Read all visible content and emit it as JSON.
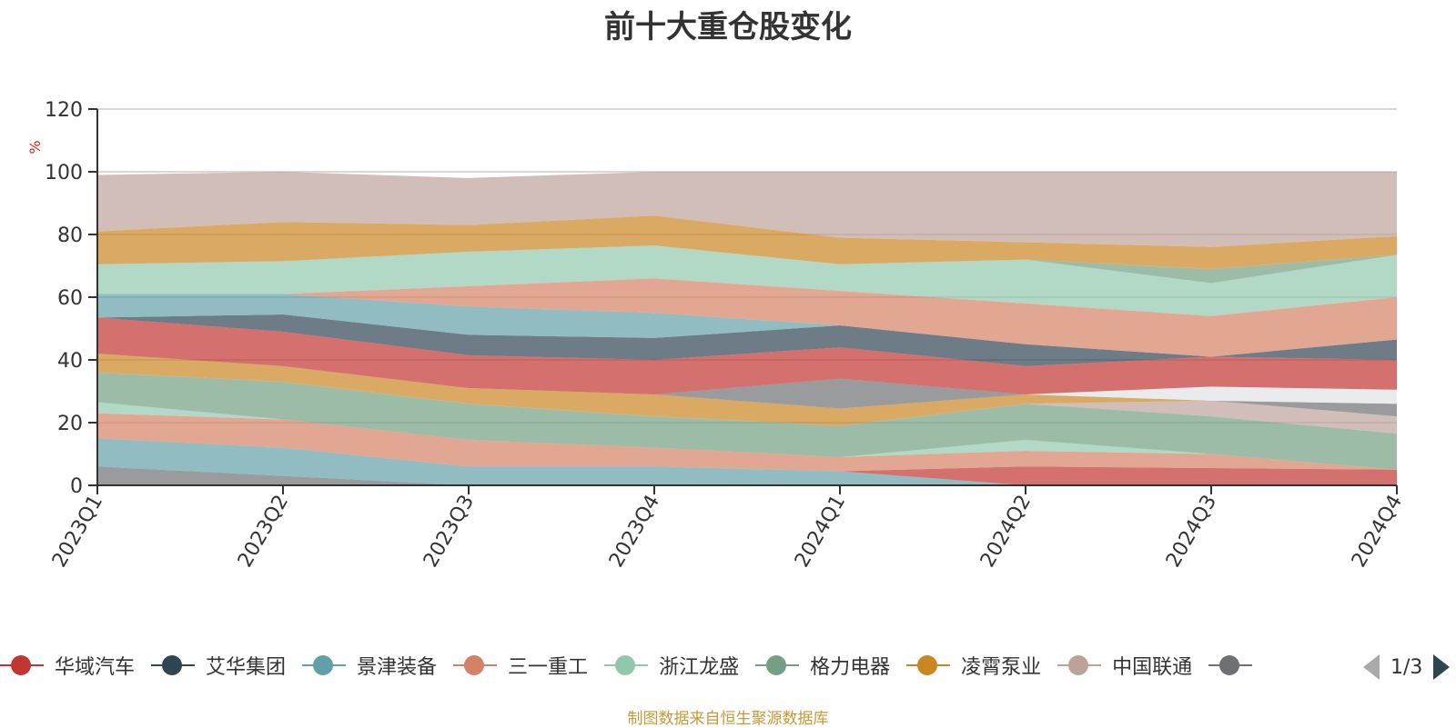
{
  "footer": "制图数据来自恒生聚源数据库",
  "pager": {
    "text": "1/3"
  },
  "chart_data": {
    "type": "area",
    "title": "前十大重仓股变化",
    "ylabel": "%",
    "ylim": [
      0,
      120
    ],
    "yticks": [
      0,
      20,
      40,
      60,
      80,
      100,
      120
    ],
    "grid": true,
    "legend_position": "bottom",
    "categories": [
      "2023Q1",
      "2023Q2",
      "2023Q3",
      "2023Q4",
      "2024Q1",
      "2024Q2",
      "2024Q3",
      "2024Q4"
    ],
    "legend": [
      {
        "name": "华域汽车",
        "color": "#c23531"
      },
      {
        "name": "艾华集团",
        "color": "#2f4554"
      },
      {
        "name": "景津装备",
        "color": "#61a0a8"
      },
      {
        "name": "三一重工",
        "color": "#d48265"
      },
      {
        "name": "浙江龙盛",
        "color": "#91c7ae"
      },
      {
        "name": "格力电器",
        "color": "#749f83"
      },
      {
        "name": "凌霄泵业",
        "color": "#ca8622"
      },
      {
        "name": "中国联通",
        "color": "#bda29a"
      },
      {
        "name": "",
        "color": "#6e7074"
      }
    ],
    "bands": [
      {
        "color": "#6e7074",
        "upper": [
          6,
          3,
          0,
          0,
          0,
          0,
          0,
          0
        ]
      },
      {
        "color": "#61a0a8",
        "upper": [
          15,
          12,
          6,
          6,
          4.5,
          0,
          0,
          0
        ]
      },
      {
        "color": "#c23531",
        "upper": [
          0,
          0,
          0,
          0,
          0,
          6,
          5.5,
          5
        ]
      },
      {
        "color": "#d48265",
        "upper": [
          23,
          21,
          14.5,
          12,
          9,
          11,
          10,
          5
        ]
      },
      {
        "color": "#91c7ae",
        "upper": [
          26.5,
          21,
          14.5,
          12,
          9,
          14.5,
          10,
          5
        ]
      },
      {
        "color": "#749f83",
        "upper": [
          36,
          33,
          26,
          22,
          19,
          26,
          22,
          16.5
        ]
      },
      {
        "color": "#bda29a",
        "upper": [
          36,
          33,
          26,
          22,
          19,
          26,
          27,
          22
        ]
      },
      {
        "color": "#ca8622",
        "upper": [
          42,
          38,
          31,
          29,
          24.5,
          29,
          27,
          22
        ]
      },
      {
        "color": "#6e7074",
        "upper": [
          42,
          38,
          31,
          29,
          34,
          29,
          27,
          26
        ]
      },
      {
        "color": "#dfe2e6",
        "upper": [
          42,
          38,
          31,
          29,
          34,
          29,
          31.5,
          30.5
        ]
      },
      {
        "color": "#c23531",
        "upper": [
          53.5,
          49,
          41.5,
          40,
          44,
          38,
          41,
          40
        ]
      },
      {
        "color": "#2f4554",
        "upper": [
          53.5,
          54.5,
          48,
          47,
          51,
          45,
          41,
          46.5
        ]
      },
      {
        "color": "#61a0a8",
        "upper": [
          61,
          61,
          57,
          55,
          51,
          45,
          41,
          46.5
        ]
      },
      {
        "color": "#d48265",
        "upper": [
          61,
          61,
          63.5,
          66,
          62,
          58,
          54,
          60
        ]
      },
      {
        "color": "#91c7ae",
        "upper": [
          70.5,
          71.5,
          74.5,
          76.5,
          70.5,
          72,
          64.5,
          73.5
        ]
      },
      {
        "color": "#749f83",
        "upper": [
          70.5,
          71.5,
          74.5,
          76.5,
          70.5,
          72,
          69,
          73.5
        ]
      },
      {
        "color": "#ca8622",
        "upper": [
          81,
          84,
          83,
          86,
          79,
          77.5,
          76,
          79.5
        ]
      },
      {
        "color": "#bda29a",
        "upper": [
          99,
          100,
          98,
          100,
          100,
          100,
          100,
          100
        ]
      }
    ]
  }
}
